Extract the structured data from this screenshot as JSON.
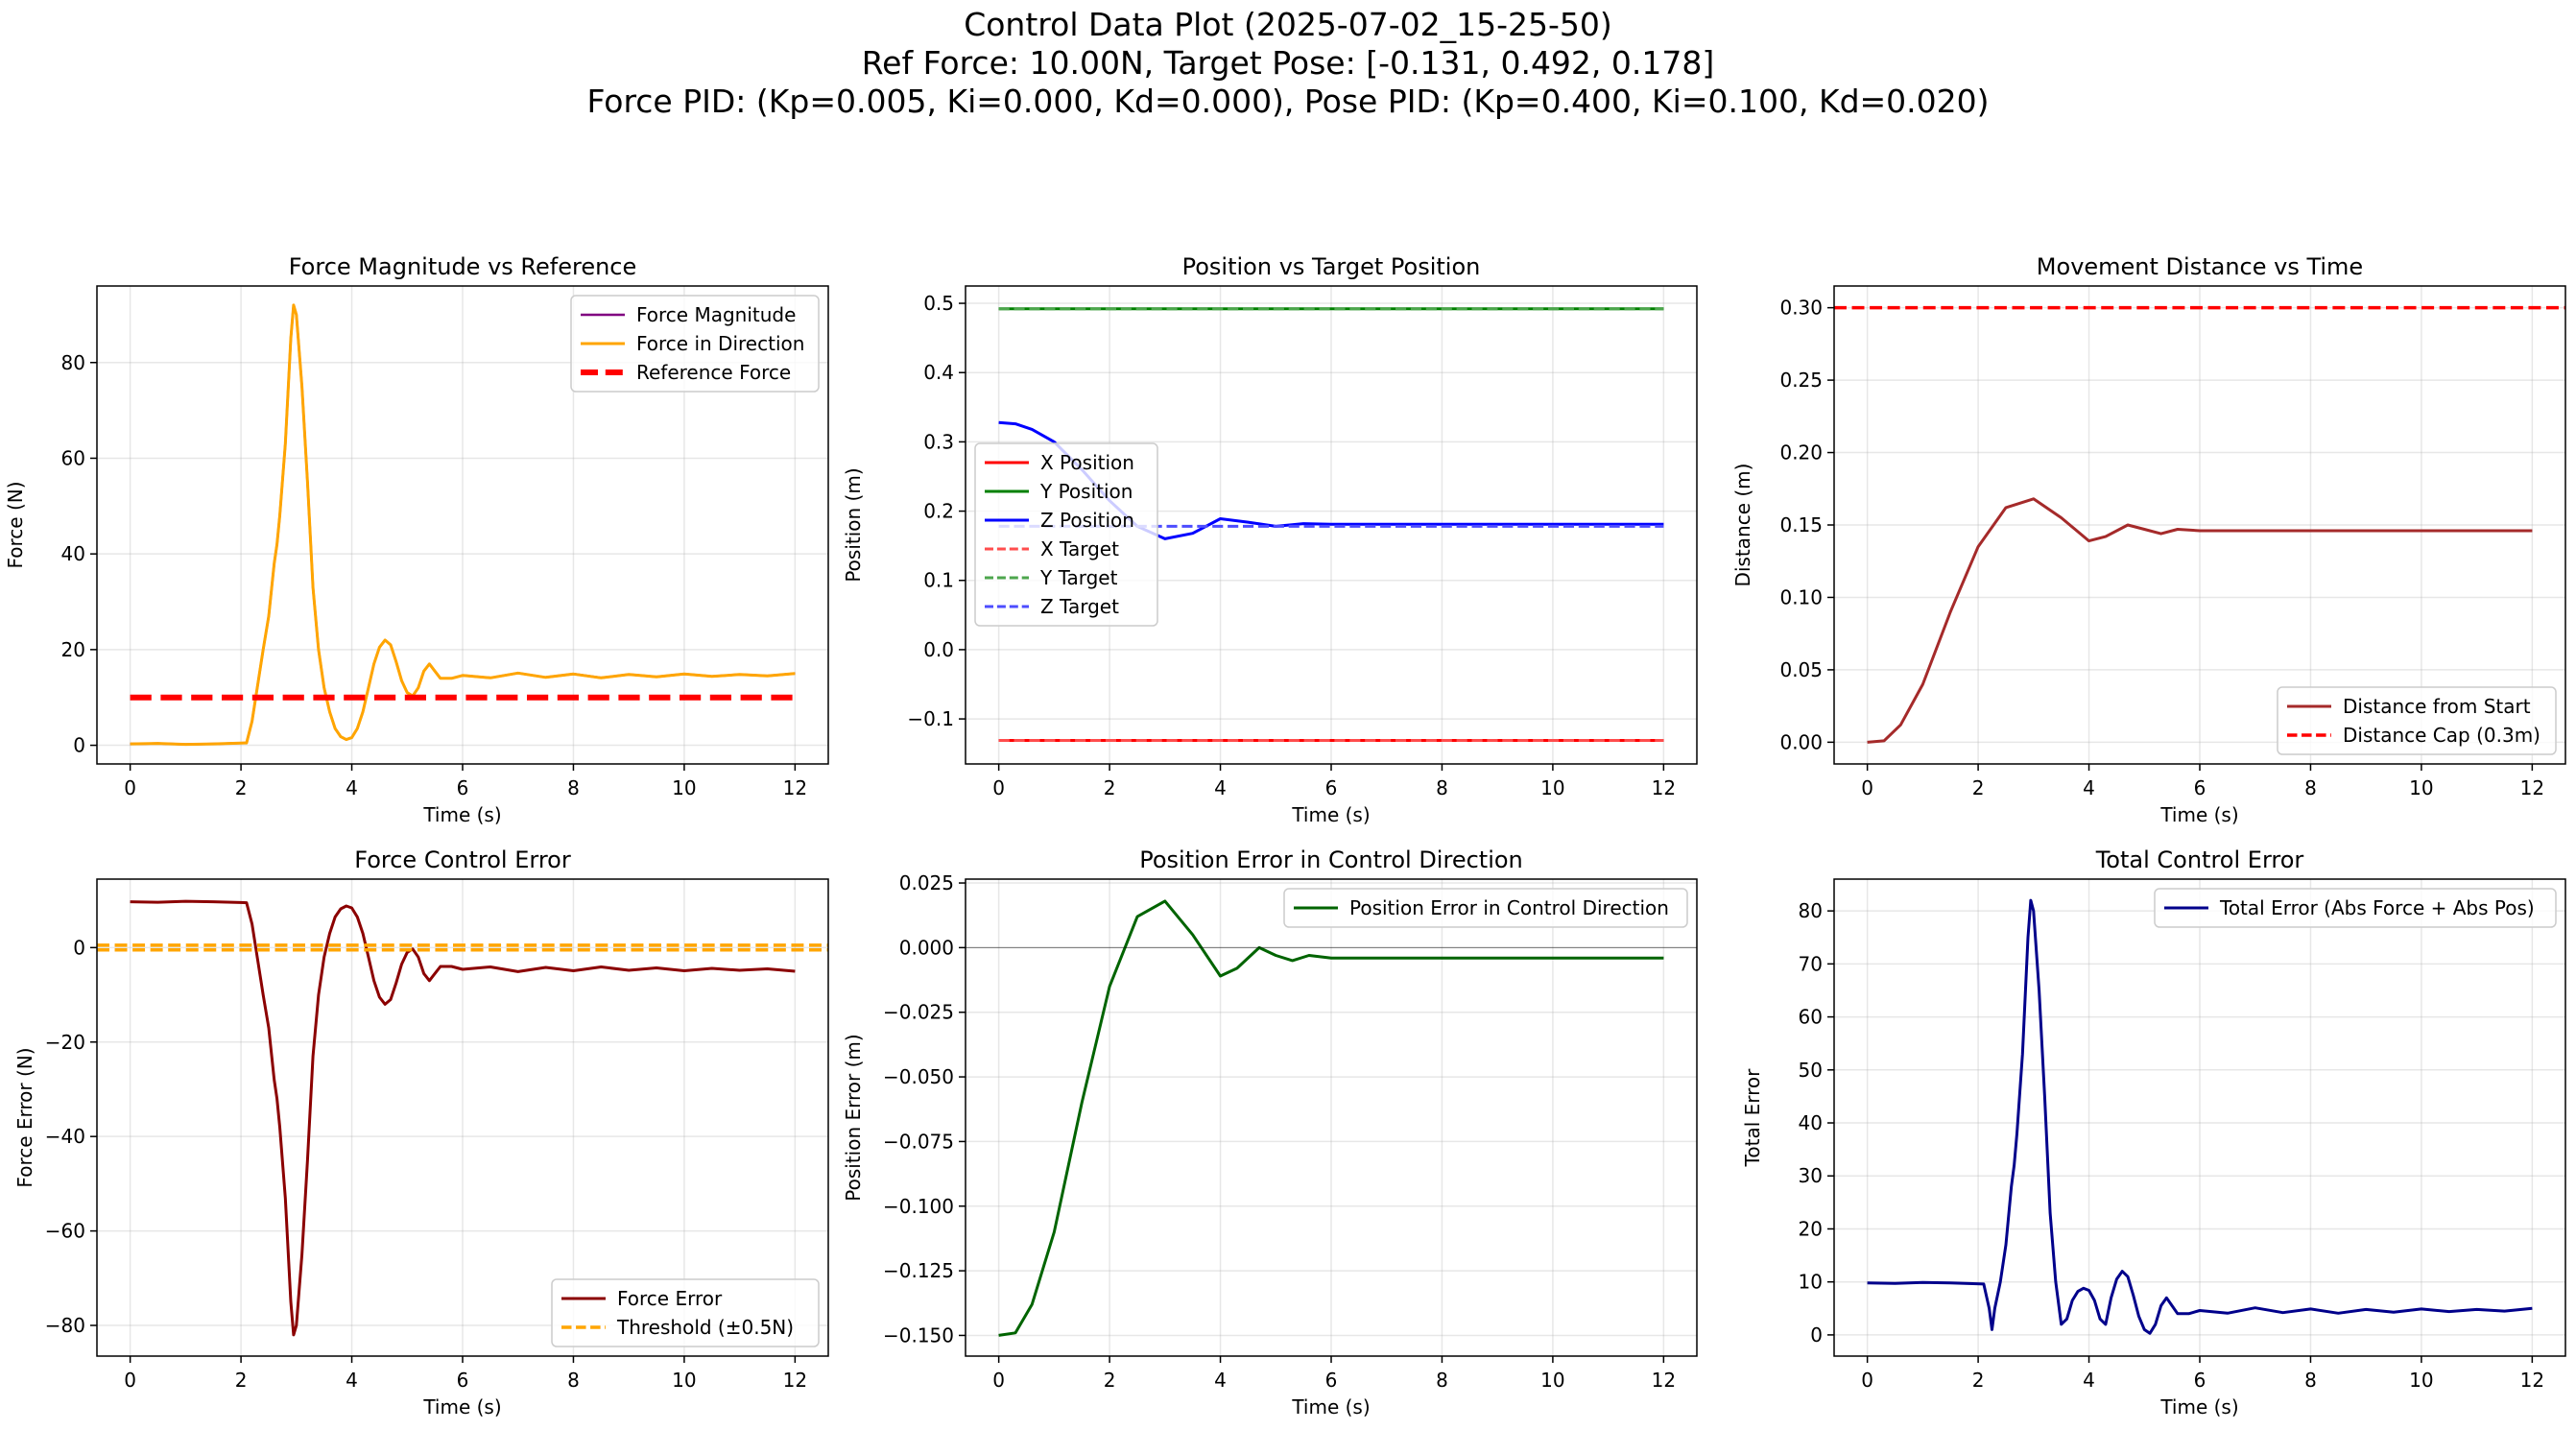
{
  "figure": {
    "title_lines": [
      "Control Data Plot (2025-07-02_15-25-50)",
      "Ref Force: 10.00N, Target Pose: [-0.131, 0.492, 0.178]",
      "Force PID: (Kp=0.005, Ki=0.000, Kd=0.000), Pose PID: (Kp=0.400, Ki=0.100, Kd=0.020)"
    ]
  },
  "chart_data": [
    {
      "id": "force-magnitude",
      "type": "line",
      "title": "Force Magnitude vs Reference",
      "xlabel": "Time (s)",
      "ylabel": "Force (N)",
      "xlim": [
        -0.6,
        12.6
      ],
      "ylim": [
        -3.9,
        96
      ],
      "xticks": [
        0,
        2,
        4,
        6,
        8,
        10,
        12
      ],
      "yticks": [
        0,
        20,
        40,
        60,
        80
      ],
      "grid": true,
      "legend_position": "top-right",
      "series": [
        {
          "name": "Force Magnitude",
          "color": "#800080",
          "width": 2.5,
          "dash": "solid",
          "x": [
            0,
            0.5,
            1,
            1.5,
            2.1,
            2.2,
            2.4,
            2.5,
            2.6,
            2.65,
            2.7,
            2.8,
            2.9,
            2.95,
            3.0,
            3.1,
            3.2,
            3.3,
            3.4,
            3.5,
            3.6,
            3.7,
            3.8,
            3.9,
            4.0,
            4.1,
            4.2,
            4.3,
            4.4,
            4.5,
            4.6,
            4.7,
            4.8,
            4.9,
            5.0,
            5.1,
            5.2,
            5.3,
            5.4,
            5.5,
            5.6,
            5.8,
            6.0,
            6.5,
            7.0,
            7.5,
            8.0,
            8.5,
            9.0,
            9.5,
            10.0,
            10.5,
            11.0,
            11.5,
            12.0
          ],
          "y": [
            0.3,
            0.4,
            0.2,
            0.3,
            0.5,
            5,
            20,
            27,
            38,
            42,
            48,
            63,
            85,
            92,
            90,
            75,
            55,
            33,
            20,
            12,
            7,
            3.5,
            1.8,
            1.2,
            1.6,
            3.5,
            7,
            12,
            17,
            20.5,
            22,
            21,
            17.5,
            13.5,
            11,
            10.3,
            12,
            15.5,
            17,
            15.5,
            14,
            14,
            14.6,
            14.1,
            15.1,
            14.2,
            14.9,
            14.1,
            14.8,
            14.3,
            14.9,
            14.4,
            14.8,
            14.5,
            15
          ]
        },
        {
          "name": "Force in Direction",
          "color": "#ffa500",
          "width": 3,
          "dash": "solid",
          "x": [
            0,
            0.5,
            1,
            1.5,
            2.1,
            2.2,
            2.4,
            2.5,
            2.6,
            2.65,
            2.7,
            2.8,
            2.9,
            2.95,
            3.0,
            3.1,
            3.2,
            3.3,
            3.4,
            3.5,
            3.6,
            3.7,
            3.8,
            3.9,
            4.0,
            4.1,
            4.2,
            4.3,
            4.4,
            4.5,
            4.6,
            4.7,
            4.8,
            4.9,
            5.0,
            5.1,
            5.2,
            5.3,
            5.4,
            5.5,
            5.6,
            5.8,
            6.0,
            6.5,
            7.0,
            7.5,
            8.0,
            8.5,
            9.0,
            9.5,
            10.0,
            10.5,
            11.0,
            11.5,
            12.0
          ],
          "y": [
            0.3,
            0.4,
            0.2,
            0.3,
            0.5,
            5,
            20,
            27,
            38,
            42,
            48,
            63,
            85,
            92,
            90,
            75,
            55,
            33,
            20,
            12,
            7,
            3.5,
            1.8,
            1.2,
            1.6,
            3.5,
            7,
            12,
            17,
            20.5,
            22,
            21,
            17.5,
            13.5,
            11,
            10.3,
            12,
            15.5,
            17,
            15.5,
            14,
            14,
            14.6,
            14.1,
            15.1,
            14.2,
            14.9,
            14.1,
            14.8,
            14.3,
            14.9,
            14.4,
            14.8,
            14.5,
            15
          ]
        },
        {
          "name": "Reference Force",
          "color": "#ff0000",
          "width": 6,
          "dash": "dashed",
          "x": [
            0,
            12
          ],
          "y": [
            10,
            10
          ]
        }
      ]
    },
    {
      "id": "position",
      "type": "line",
      "title": "Position vs Target Position",
      "xlabel": "Time (s)",
      "ylabel": "Position (m)",
      "xlim": [
        -0.6,
        12.6
      ],
      "ylim": [
        -0.165,
        0.525
      ],
      "xticks": [
        0,
        2,
        4,
        6,
        8,
        10,
        12
      ],
      "yticks": [
        -0.1,
        0.0,
        0.1,
        0.2,
        0.3,
        0.4,
        0.5
      ],
      "grid": true,
      "legend_position": "center-left",
      "series": [
        {
          "name": "X Position",
          "color": "#ff0000",
          "width": 3,
          "dash": "solid",
          "x": [
            0,
            12
          ],
          "y": [
            -0.131,
            -0.131
          ]
        },
        {
          "name": "Y Position",
          "color": "#008000",
          "width": 3,
          "dash": "solid",
          "x": [
            0,
            12
          ],
          "y": [
            0.492,
            0.492
          ]
        },
        {
          "name": "Z Position",
          "color": "#0000ff",
          "width": 3,
          "dash": "solid",
          "x": [
            0,
            0.3,
            0.6,
            1,
            1.5,
            2,
            2.5,
            3,
            3.5,
            4,
            4.5,
            5,
            5.5,
            6,
            8,
            10,
            12
          ],
          "y": [
            0.328,
            0.326,
            0.318,
            0.3,
            0.26,
            0.215,
            0.178,
            0.16,
            0.168,
            0.189,
            0.184,
            0.178,
            0.182,
            0.181,
            0.181,
            0.181,
            0.181
          ]
        },
        {
          "name": "X Target",
          "color": "#ff4d4d",
          "width": 3,
          "dash": "dashed",
          "x": [
            0,
            12
          ],
          "y": [
            -0.131,
            -0.131
          ]
        },
        {
          "name": "Y Target",
          "color": "#4da64d",
          "width": 3,
          "dash": "dashed",
          "x": [
            0,
            12
          ],
          "y": [
            0.492,
            0.492
          ]
        },
        {
          "name": "Z Target",
          "color": "#4d4dff",
          "width": 3,
          "dash": "dashed",
          "x": [
            0,
            12
          ],
          "y": [
            0.178,
            0.178
          ]
        }
      ]
    },
    {
      "id": "distance",
      "type": "line",
      "title": "Movement Distance vs Time",
      "xlabel": "Time (s)",
      "ylabel": "Distance (m)",
      "xlim": [
        -0.6,
        12.6
      ],
      "ylim": [
        -0.015,
        0.315
      ],
      "xticks": [
        0,
        2,
        4,
        6,
        8,
        10,
        12
      ],
      "yticks": [
        0.0,
        0.05,
        0.1,
        0.15,
        0.2,
        0.25,
        0.3
      ],
      "grid": true,
      "legend_position": "bottom-right",
      "series": [
        {
          "name": "Distance from Start",
          "color": "#a52a2a",
          "width": 3,
          "dash": "solid",
          "x": [
            0,
            0.3,
            0.6,
            1,
            1.5,
            2,
            2.5,
            3,
            3.5,
            4,
            4.3,
            4.7,
            5,
            5.3,
            5.6,
            6,
            8,
            10,
            12
          ],
          "y": [
            0,
            0.001,
            0.012,
            0.04,
            0.09,
            0.135,
            0.162,
            0.168,
            0.155,
            0.139,
            0.142,
            0.15,
            0.147,
            0.144,
            0.147,
            0.146,
            0.146,
            0.146,
            0.146
          ]
        },
        {
          "name": "Distance Cap (0.3m)",
          "color": "#ff0000",
          "width": 3.5,
          "dash": "dashed",
          "x": [
            -0.6,
            12.6
          ],
          "y": [
            0.3,
            0.3
          ]
        }
      ]
    },
    {
      "id": "force-error",
      "type": "line",
      "title": "Force Control Error",
      "xlabel": "Time (s)",
      "ylabel": "Force Error (N)",
      "xlim": [
        -0.6,
        12.6
      ],
      "ylim": [
        -86.5,
        14.5
      ],
      "xticks": [
        0,
        2,
        4,
        6,
        8,
        10,
        12
      ],
      "yticks": [
        -80,
        -60,
        -40,
        -20,
        0
      ],
      "grid": true,
      "legend_position": "bottom-right",
      "series": [
        {
          "name": "Force Error",
          "color": "#8b0000",
          "width": 3,
          "dash": "solid",
          "x": [
            0,
            0.5,
            1,
            1.5,
            2.1,
            2.2,
            2.4,
            2.5,
            2.6,
            2.65,
            2.7,
            2.8,
            2.9,
            2.95,
            3.0,
            3.1,
            3.2,
            3.3,
            3.4,
            3.5,
            3.6,
            3.7,
            3.8,
            3.9,
            4.0,
            4.1,
            4.2,
            4.3,
            4.4,
            4.5,
            4.6,
            4.7,
            4.8,
            4.9,
            5.0,
            5.1,
            5.2,
            5.3,
            5.4,
            5.5,
            5.6,
            5.8,
            6.0,
            6.5,
            7.0,
            7.5,
            8.0,
            8.5,
            9.0,
            9.5,
            10.0,
            10.5,
            11.0,
            11.5,
            12.0
          ],
          "y": [
            9.7,
            9.6,
            9.8,
            9.7,
            9.5,
            5,
            -10,
            -17,
            -28,
            -32,
            -38,
            -53,
            -75,
            -82,
            -80,
            -65,
            -45,
            -23,
            -10,
            -2,
            3,
            6.5,
            8.2,
            8.8,
            8.4,
            6.5,
            3,
            -2,
            -7,
            -10.5,
            -12,
            -11,
            -7.5,
            -3.5,
            -1,
            -0.3,
            -2,
            -5.5,
            -7,
            -5.5,
            -4,
            -4,
            -4.6,
            -4.1,
            -5.1,
            -4.2,
            -4.9,
            -4.1,
            -4.8,
            -4.3,
            -4.9,
            -4.4,
            -4.8,
            -4.5,
            -5
          ]
        },
        {
          "name": "Threshold (±0.5N)",
          "color": "#ffa500",
          "width": 3.5,
          "dash": "dashed",
          "x": [
            -0.6,
            12.6
          ],
          "y": [
            0.5,
            0.5
          ]
        },
        {
          "name": "",
          "color": "#ffa500",
          "width": 3.5,
          "dash": "dashed",
          "x": [
            -0.6,
            12.6
          ],
          "y": [
            -0.5,
            -0.5
          ]
        }
      ]
    },
    {
      "id": "position-error",
      "type": "line",
      "title": "Position Error in Control Direction",
      "xlabel": "Time (s)",
      "ylabel": "Position Error (m)",
      "xlim": [
        -0.6,
        12.6
      ],
      "ylim": [
        -0.158,
        0.0265
      ],
      "xticks": [
        0,
        2,
        4,
        6,
        8,
        10,
        12
      ],
      "yticks": [
        -0.15,
        -0.125,
        -0.1,
        -0.075,
        -0.05,
        -0.025,
        0.0,
        0.025
      ],
      "grid": true,
      "legend_position": "top-right",
      "series": [
        {
          "name": "Position Error in Control Direction",
          "color": "#006400",
          "width": 3,
          "dash": "solid",
          "x": [
            0,
            0.3,
            0.6,
            1,
            1.5,
            2,
            2.5,
            3,
            3.5,
            4,
            4.3,
            4.7,
            5,
            5.3,
            5.6,
            6,
            8,
            10,
            12
          ],
          "y": [
            -0.15,
            -0.149,
            -0.138,
            -0.11,
            -0.06,
            -0.015,
            0.012,
            0.018,
            0.005,
            -0.011,
            -0.008,
            0,
            -0.003,
            -0.005,
            -0.003,
            -0.004,
            -0.004,
            -0.004,
            -0.004
          ]
        },
        {
          "name": "",
          "color": "#000000",
          "width": 1,
          "dash": "solid",
          "alpha": 0.5,
          "x": [
            -0.6,
            12.6
          ],
          "y": [
            0,
            0
          ]
        }
      ]
    },
    {
      "id": "total-error",
      "type": "line",
      "title": "Total Control Error",
      "xlabel": "Time (s)",
      "ylabel": "Total Error",
      "xlim": [
        -0.6,
        12.6
      ],
      "ylim": [
        -4,
        86
      ],
      "xticks": [
        0,
        2,
        4,
        6,
        8,
        10,
        12
      ],
      "yticks": [
        0,
        10,
        20,
        30,
        40,
        50,
        60,
        70,
        80
      ],
      "grid": true,
      "legend_position": "top-right",
      "series": [
        {
          "name": "Total Error (Abs Force + Abs Pos)",
          "color": "#00008b",
          "width": 3,
          "dash": "solid",
          "x": [
            0,
            0.5,
            1,
            1.5,
            2.1,
            2.2,
            2.25,
            2.3,
            2.4,
            2.5,
            2.6,
            2.65,
            2.7,
            2.8,
            2.9,
            2.95,
            3.0,
            3.1,
            3.2,
            3.3,
            3.4,
            3.5,
            3.6,
            3.7,
            3.8,
            3.9,
            4.0,
            4.1,
            4.2,
            4.3,
            4.4,
            4.5,
            4.6,
            4.7,
            4.8,
            4.9,
            5.0,
            5.1,
            5.2,
            5.3,
            5.4,
            5.5,
            5.6,
            5.8,
            6.0,
            6.5,
            7.0,
            7.5,
            8.0,
            8.5,
            9.0,
            9.5,
            10.0,
            10.5,
            11.0,
            11.5,
            12.0
          ],
          "y": [
            9.8,
            9.7,
            9.9,
            9.8,
            9.6,
            5,
            1,
            5,
            10,
            17,
            28,
            32,
            38,
            53,
            75,
            82,
            80,
            65,
            45,
            23,
            10,
            2,
            3,
            6.5,
            8.2,
            8.8,
            8.4,
            6.5,
            3,
            2,
            7,
            10.5,
            12,
            11,
            7.5,
            3.5,
            1,
            0.3,
            2,
            5.5,
            7,
            5.5,
            4,
            4,
            4.6,
            4.1,
            5.1,
            4.2,
            4.9,
            4.1,
            4.8,
            4.3,
            4.9,
            4.4,
            4.8,
            4.5,
            5
          ]
        }
      ]
    }
  ]
}
